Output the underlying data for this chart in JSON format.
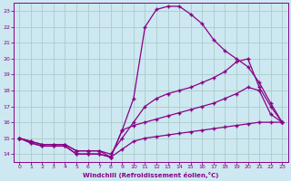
{
  "xlabel": "Windchill (Refroidissement éolien,°C)",
  "background_color": "#cde8f0",
  "grid_color": "#aacccc",
  "line_color": "#880088",
  "xlim": [
    -0.5,
    23.5
  ],
  "ylim": [
    13.5,
    23.5
  ],
  "xticks": [
    0,
    1,
    2,
    3,
    4,
    5,
    6,
    7,
    8,
    9,
    10,
    11,
    12,
    13,
    14,
    15,
    16,
    17,
    18,
    19,
    20,
    21,
    22,
    23
  ],
  "yticks": [
    14,
    15,
    16,
    17,
    18,
    19,
    20,
    21,
    22,
    23
  ],
  "line1_x": [
    0,
    1,
    2,
    3,
    4,
    5,
    6,
    7,
    8,
    9,
    10,
    11,
    12,
    13,
    14,
    15,
    16,
    17,
    18,
    19,
    20,
    21,
    22,
    23
  ],
  "line1_y": [
    15.0,
    14.7,
    14.5,
    14.5,
    14.5,
    14.0,
    14.0,
    14.0,
    13.8,
    15.5,
    17.5,
    22.0,
    23.1,
    23.3,
    23.3,
    22.8,
    22.2,
    21.2,
    20.5,
    20.0,
    19.5,
    18.5,
    17.2,
    16.0
  ],
  "line2_x": [
    0,
    1,
    2,
    3,
    4,
    5,
    6,
    7,
    8,
    9,
    10,
    11,
    12,
    13,
    14,
    15,
    16,
    17,
    18,
    19,
    20,
    21,
    22,
    23
  ],
  "line2_y": [
    15.0,
    14.7,
    14.5,
    14.5,
    14.5,
    14.0,
    14.0,
    14.0,
    13.8,
    14.3,
    14.8,
    15.0,
    15.1,
    15.2,
    15.3,
    15.4,
    15.5,
    15.6,
    15.7,
    15.8,
    15.9,
    16.0,
    16.0,
    16.0
  ],
  "line3_x": [
    0,
    1,
    2,
    3,
    4,
    5,
    6,
    7,
    8,
    9,
    10,
    11,
    12,
    13,
    14,
    15,
    16,
    17,
    18,
    19,
    20,
    21,
    22,
    23
  ],
  "line3_y": [
    15.0,
    14.8,
    14.6,
    14.6,
    14.6,
    14.2,
    14.2,
    14.2,
    14.0,
    15.0,
    16.0,
    17.0,
    17.5,
    17.8,
    18.0,
    18.2,
    18.5,
    18.8,
    19.2,
    19.8,
    20.0,
    18.2,
    17.0,
    16.0
  ],
  "line4_x": [
    0,
    1,
    2,
    3,
    4,
    5,
    6,
    7,
    8,
    9,
    10,
    11,
    12,
    13,
    14,
    15,
    16,
    17,
    18,
    19,
    20,
    21,
    22,
    23
  ],
  "line4_y": [
    15.0,
    14.8,
    14.6,
    14.6,
    14.6,
    14.2,
    14.2,
    14.2,
    13.8,
    15.5,
    15.8,
    16.0,
    16.2,
    16.4,
    16.6,
    16.8,
    17.0,
    17.2,
    17.5,
    17.8,
    18.2,
    18.0,
    16.5,
    16.0
  ]
}
